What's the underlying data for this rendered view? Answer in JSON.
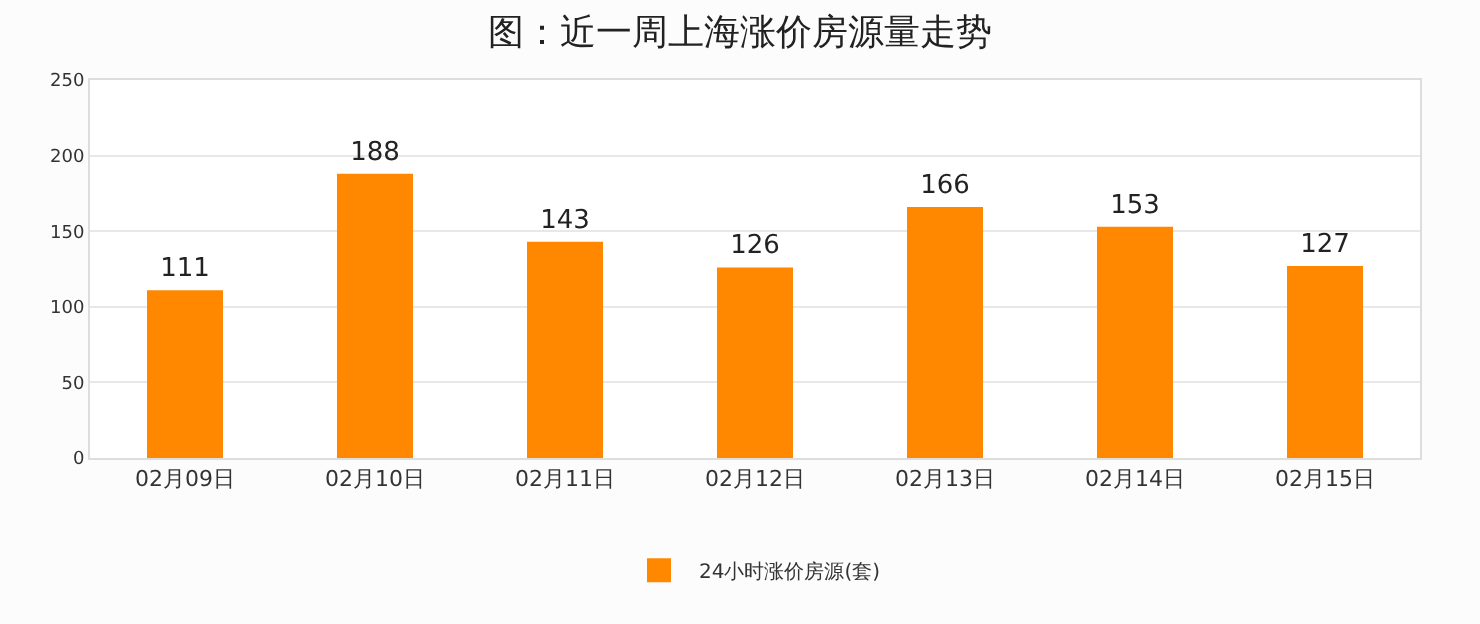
{
  "chart_data": {
    "type": "bar",
    "title": "图：近一周上海涨价房源量走势",
    "categories": [
      "02月09日",
      "02月10日",
      "02月11日",
      "02月12日",
      "02月13日",
      "02月14日",
      "02月15日"
    ],
    "series": [
      {
        "name": "24小时涨价房源(套)",
        "color": "#ff8800",
        "values": [
          111,
          188,
          143,
          126,
          166,
          153,
          127
        ]
      }
    ],
    "ylim": [
      0,
      250
    ],
    "yticks": [
      0,
      50,
      100,
      150,
      200,
      250
    ],
    "grid": "y",
    "legend": "bottom",
    "data_labels": true
  }
}
